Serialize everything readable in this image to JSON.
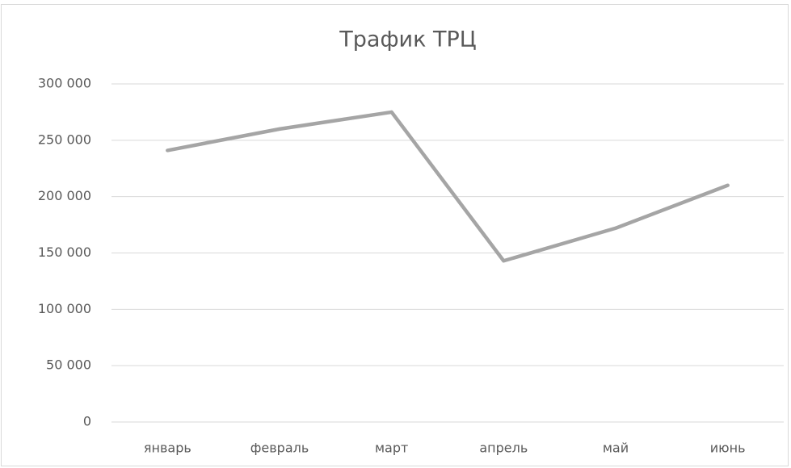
{
  "chart_data": {
    "type": "line",
    "title": "Трафик ТРЦ",
    "categories": [
      "январь",
      "февраль",
      "март",
      "апрель",
      "май",
      "июнь"
    ],
    "series": [
      {
        "name": "Трафик ТРЦ",
        "color": "#a5a5a5",
        "values": [
          241000,
          260000,
          275000,
          143000,
          172000,
          210000
        ]
      }
    ],
    "ylim": [
      0,
      300000
    ],
    "yticks": [
      0,
      {
        "value": 50000,
        "label": "50 000"
      },
      {
        "value": 100000,
        "label": "100 000"
      },
      {
        "value": 150000,
        "label": "150 000"
      },
      {
        "value": 200000,
        "label": "200 000"
      },
      {
        "value": 250000,
        "label": "250 000"
      },
      {
        "value": 300000,
        "label": "300 000"
      }
    ],
    "grid": true
  }
}
